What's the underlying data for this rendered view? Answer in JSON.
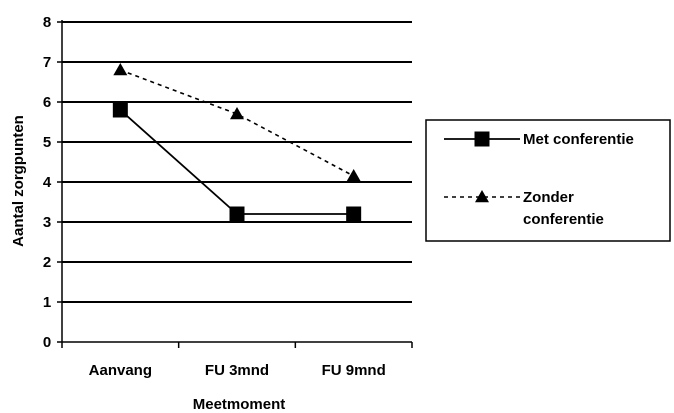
{
  "chart_data": {
    "type": "line",
    "categories": [
      "Aanvang",
      "FU 3mnd",
      "FU 9mnd"
    ],
    "series": [
      {
        "name": "Met conferentie",
        "values": [
          5.8,
          3.2,
          3.2
        ],
        "style": "solid",
        "marker": "square",
        "color": "#000000"
      },
      {
        "name": "Zonder conferentie",
        "values": [
          6.8,
          5.7,
          4.15
        ],
        "style": "dashed",
        "marker": "triangle",
        "color": "#000000"
      }
    ],
    "title": "",
    "xlabel": "Meetmoment",
    "ylabel": "Aantal zorgpunten",
    "ylim": [
      0,
      8
    ],
    "yticks": [
      0,
      1,
      2,
      3,
      4,
      5,
      6,
      7,
      8
    ],
    "grid": true,
    "legend": {
      "position": "right",
      "labels": [
        [
          "Met conferentie"
        ],
        [
          "Zonder",
          "conferentie"
        ]
      ]
    }
  }
}
